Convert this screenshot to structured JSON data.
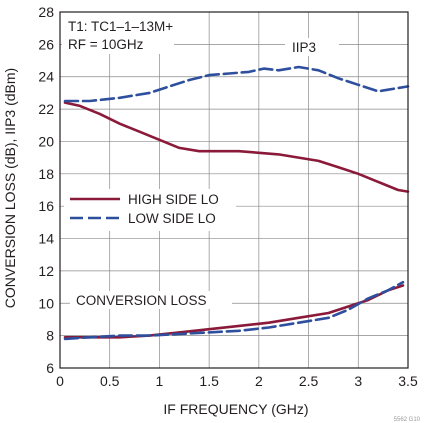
{
  "chart_data": {
    "type": "line",
    "xlabel": "IF FREQUENCY (GHz)",
    "ylabel": "CONVERSION LOSS (dB), IIP3 (dBm)",
    "xlim": [
      0,
      3.5
    ],
    "ylim": [
      6,
      28
    ],
    "x_ticks": [
      0,
      0.5,
      1,
      1.5,
      2,
      2.5,
      3,
      3.5
    ],
    "x_tick_labels": [
      "0",
      "0.5",
      "1",
      "1.5",
      "2",
      "2.5",
      "3",
      "3.5"
    ],
    "y_ticks": [
      6,
      8,
      10,
      12,
      14,
      16,
      18,
      20,
      22,
      24,
      26,
      28
    ],
    "y_tick_labels": [
      "6",
      "8",
      "10",
      "12",
      "14",
      "16",
      "18",
      "20",
      "22",
      "24",
      "26",
      "28"
    ],
    "grid": true,
    "legend_position": "center-left",
    "annotations": {
      "conditions_line1": "T1: TC1–1–13M+",
      "conditions_line2": "RF = 10GHz",
      "iip3_label": "IIP3",
      "conversion_loss_label": "CONVERSION LOSS",
      "figure_ref": "5562 G10"
    },
    "colors": {
      "high_side": "#8b1a3a",
      "low_side": "#2e4f9e",
      "grid": "#8a8a8a",
      "axis": "#231f20"
    },
    "series": [
      {
        "name": "HIGH SIDE LO",
        "group": "IIP3",
        "style": "solid",
        "x": [
          0.05,
          0.2,
          0.4,
          0.6,
          0.8,
          1.0,
          1.2,
          1.4,
          1.6,
          1.8,
          2.0,
          2.2,
          2.4,
          2.6,
          2.8,
          3.0,
          3.2,
          3.4,
          3.5
        ],
        "y": [
          22.4,
          22.2,
          21.7,
          21.1,
          20.6,
          20.1,
          19.6,
          19.4,
          19.4,
          19.4,
          19.3,
          19.2,
          19.0,
          18.8,
          18.4,
          18.0,
          17.5,
          17.0,
          16.9
        ]
      },
      {
        "name": "LOW SIDE LO",
        "group": "IIP3",
        "style": "dashed",
        "x": [
          0.05,
          0.3,
          0.6,
          0.9,
          1.1,
          1.3,
          1.5,
          1.7,
          1.9,
          2.05,
          2.2,
          2.4,
          2.6,
          2.8,
          3.0,
          3.2,
          3.3,
          3.5
        ],
        "y": [
          22.5,
          22.5,
          22.7,
          23.0,
          23.4,
          23.8,
          24.1,
          24.2,
          24.3,
          24.5,
          24.4,
          24.6,
          24.4,
          23.9,
          23.5,
          23.1,
          23.2,
          23.4
        ]
      },
      {
        "name": "HIGH SIDE LO",
        "group": "CONVERSION LOSS",
        "style": "solid",
        "x": [
          0.05,
          0.3,
          0.6,
          0.9,
          1.2,
          1.5,
          1.8,
          2.1,
          2.4,
          2.7,
          2.9,
          3.1,
          3.3,
          3.45
        ],
        "y": [
          7.9,
          7.9,
          7.9,
          8.0,
          8.2,
          8.4,
          8.6,
          8.8,
          9.1,
          9.4,
          9.8,
          10.2,
          10.8,
          11.1
        ]
      },
      {
        "name": "LOW SIDE LO",
        "group": "CONVERSION LOSS",
        "style": "dashed",
        "x": [
          0.05,
          0.3,
          0.6,
          0.9,
          1.2,
          1.5,
          1.8,
          2.1,
          2.4,
          2.7,
          2.9,
          3.1,
          3.3,
          3.45
        ],
        "y": [
          7.8,
          7.9,
          8.0,
          8.0,
          8.1,
          8.2,
          8.3,
          8.5,
          8.8,
          9.1,
          9.6,
          10.3,
          10.8,
          11.3
        ]
      }
    ],
    "legend": [
      {
        "label": "HIGH SIDE LO",
        "style": "solid"
      },
      {
        "label": "LOW SIDE LO",
        "style": "dashed"
      }
    ]
  }
}
